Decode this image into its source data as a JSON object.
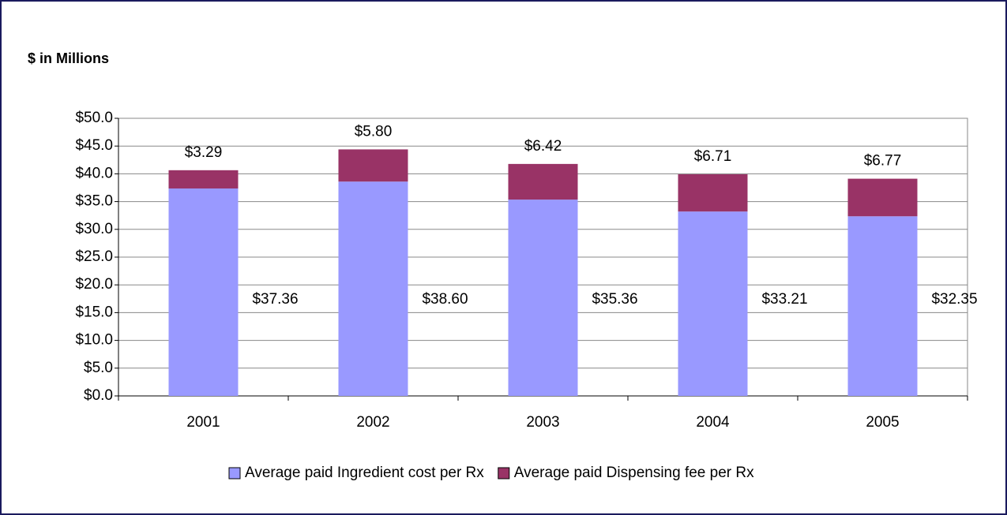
{
  "chart_data": {
    "type": "stacked_bar",
    "title": "$ in Millions",
    "categories": [
      "2001",
      "2002",
      "2003",
      "2004",
      "2005"
    ],
    "series": [
      {
        "name": "Average paid Ingredient cost per Rx",
        "color": "#9999ff",
        "values": [
          37.36,
          38.6,
          35.36,
          33.21,
          32.35
        ],
        "value_labels": [
          "$37.36",
          "$38.60",
          "$35.36",
          "$33.21",
          "$32.35"
        ]
      },
      {
        "name": "Average paid Dispensing fee per Rx",
        "color": "#993366",
        "values": [
          3.29,
          5.8,
          6.42,
          6.71,
          6.77
        ],
        "value_labels": [
          "$3.29",
          "$5.80",
          "$6.42",
          "$6.71",
          "$6.77"
        ]
      }
    ],
    "ylim": [
      0,
      50
    ],
    "yticks": [
      {
        "value": 0,
        "label": "$0.0"
      },
      {
        "value": 5,
        "label": "$5.0"
      },
      {
        "value": 10,
        "label": "$10.0"
      },
      {
        "value": 15,
        "label": "$15.0"
      },
      {
        "value": 20,
        "label": "$20.0"
      },
      {
        "value": 25,
        "label": "$25.0"
      },
      {
        "value": 30,
        "label": "$30.0"
      },
      {
        "value": 35,
        "label": "$35.0"
      },
      {
        "value": 40,
        "label": "$40.0"
      },
      {
        "value": 45,
        "label": "$45.0"
      },
      {
        "value": 50,
        "label": "$50.0"
      }
    ],
    "grid": true,
    "legend": "bottom"
  }
}
